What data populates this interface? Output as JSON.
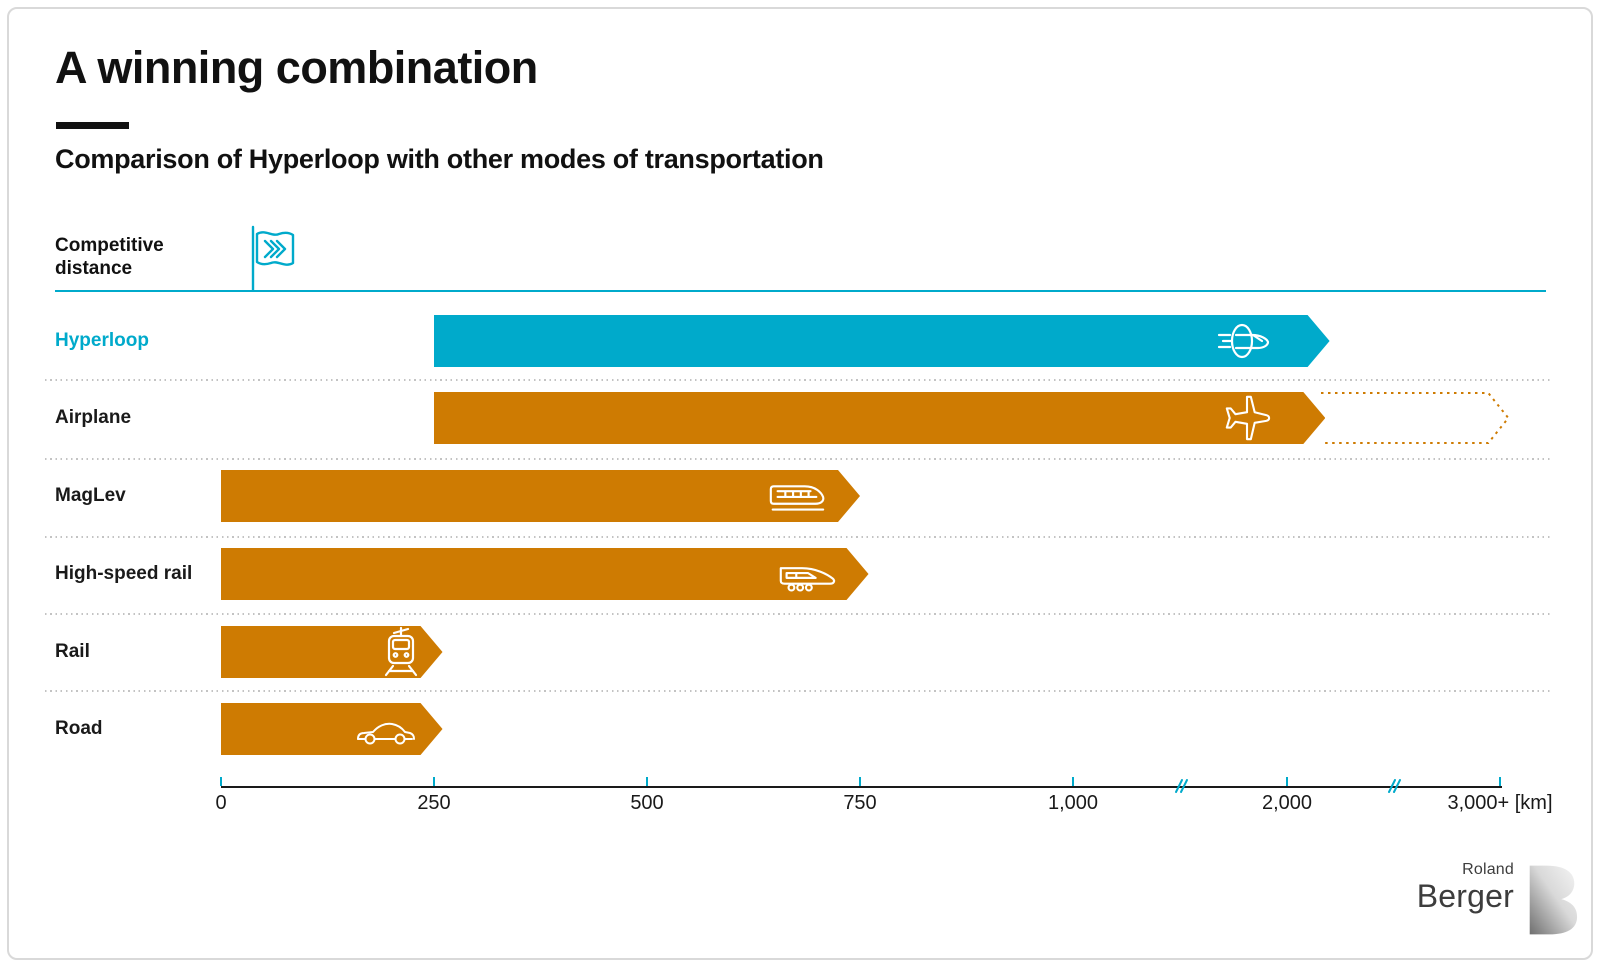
{
  "header": {
    "title": "A winning combination",
    "subtitle": "Comparison of Hyperloop with other modes of transportation"
  },
  "competitive_distance": {
    "line1": "Competitive",
    "line2": "distance",
    "flag_icon": "flag-chevrons-icon"
  },
  "colors": {
    "accent_cyan": "#00AACB",
    "bar_orange": "#CE7B02",
    "text_dark": "#1a1a1a"
  },
  "chart_data": {
    "type": "bar",
    "orientation": "horizontal",
    "unit": "km",
    "title": "Comparison of Hyperloop with other modes of transportation",
    "x_axis": {
      "tick_km": [
        0,
        250,
        500,
        750,
        1000,
        2000,
        3000
      ],
      "tick_labels": [
        "0",
        "250",
        "500",
        "750",
        "1,000",
        "2,000",
        "3,000+ [km]"
      ],
      "break_marks_km": [
        1500,
        2500
      ],
      "scale_note": "axis compressed beyond 1,000 km (two scale breaks)"
    },
    "series": [
      {
        "label": "Hyperloop",
        "start_km": 250,
        "end_km": 2200,
        "color": "#00AACB",
        "label_color": "#00AACB",
        "icon": "hyperloop-pod-icon"
      },
      {
        "label": "Airplane",
        "start_km": 250,
        "end_km": 2180,
        "dotted_end_km": 3050,
        "color": "#CE7B02",
        "label_color": "#1a1a1a",
        "icon": "airplane-icon"
      },
      {
        "label": "MagLev",
        "start_km": 0,
        "end_km": 750,
        "color": "#CE7B02",
        "label_color": "#1a1a1a",
        "icon": "maglev-train-icon"
      },
      {
        "label": "High-speed rail",
        "start_km": 0,
        "end_km": 760,
        "color": "#CE7B02",
        "label_color": "#1a1a1a",
        "icon": "high-speed-train-icon"
      },
      {
        "label": "Rail",
        "start_km": 0,
        "end_km": 260,
        "color": "#CE7B02",
        "label_color": "#1a1a1a",
        "icon": "rail-front-icon"
      },
      {
        "label": "Road",
        "start_km": 0,
        "end_km": 260,
        "color": "#CE7B02",
        "label_color": "#1a1a1a",
        "icon": "car-icon"
      }
    ]
  },
  "logo": {
    "top": "Roland",
    "bottom": "Berger",
    "monogram": "B"
  }
}
